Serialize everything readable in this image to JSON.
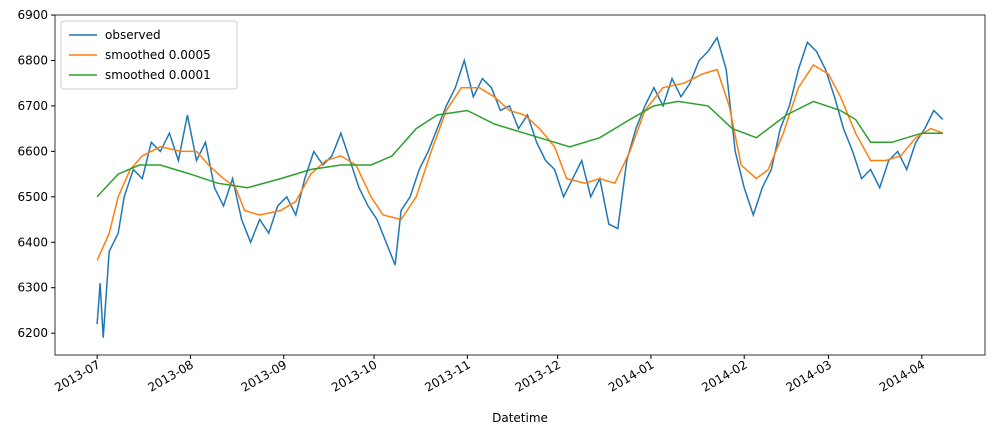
{
  "chart_data": {
    "type": "line",
    "xlabel": "Datetime",
    "legend": "upper left",
    "xlim": [
      "2013-06-17",
      "2014-04-22"
    ],
    "ylim": [
      6152,
      6900
    ],
    "yticks": [
      6200,
      6300,
      6400,
      6500,
      6600,
      6700,
      6800,
      6900
    ],
    "xticks": [
      {
        "value": "2013-07-01",
        "label": "2013-07"
      },
      {
        "value": "2013-08-01",
        "label": "2013-08"
      },
      {
        "value": "2013-09-01",
        "label": "2013-09"
      },
      {
        "value": "2013-10-01",
        "label": "2013-10"
      },
      {
        "value": "2013-11-01",
        "label": "2013-11"
      },
      {
        "value": "2013-12-01",
        "label": "2013-12"
      },
      {
        "value": "2014-01-01",
        "label": "2014-01"
      },
      {
        "value": "2014-02-01",
        "label": "2014-02"
      },
      {
        "value": "2014-03-01",
        "label": "2014-03"
      },
      {
        "value": "2014-04-01",
        "label": "2014-04"
      }
    ],
    "series": [
      {
        "name": "observed",
        "color": "#1f77b4",
        "x": [
          "2013-07-01",
          "2013-07-02",
          "2013-07-03",
          "2013-07-05",
          "2013-07-08",
          "2013-07-10",
          "2013-07-13",
          "2013-07-16",
          "2013-07-19",
          "2013-07-22",
          "2013-07-25",
          "2013-07-28",
          "2013-07-31",
          "2013-08-03",
          "2013-08-06",
          "2013-08-09",
          "2013-08-12",
          "2013-08-15",
          "2013-08-18",
          "2013-08-21",
          "2013-08-24",
          "2013-08-27",
          "2013-08-30",
          "2013-09-02",
          "2013-09-05",
          "2013-09-08",
          "2013-09-11",
          "2013-09-14",
          "2013-09-17",
          "2013-09-20",
          "2013-09-23",
          "2013-09-26",
          "2013-09-29",
          "2013-10-02",
          "2013-10-05",
          "2013-10-08",
          "2013-10-10",
          "2013-10-13",
          "2013-10-16",
          "2013-10-19",
          "2013-10-22",
          "2013-10-25",
          "2013-10-28",
          "2013-10-31",
          "2013-11-03",
          "2013-11-06",
          "2013-11-09",
          "2013-11-12",
          "2013-11-15",
          "2013-11-18",
          "2013-11-21",
          "2013-11-24",
          "2013-11-27",
          "2013-11-30",
          "2013-12-03",
          "2013-12-06",
          "2013-12-09",
          "2013-12-12",
          "2013-12-15",
          "2013-12-18",
          "2013-12-21",
          "2013-12-24",
          "2013-12-27",
          "2013-12-30",
          "2014-01-02",
          "2014-01-05",
          "2014-01-08",
          "2014-01-11",
          "2014-01-14",
          "2014-01-17",
          "2014-01-20",
          "2014-01-23",
          "2014-01-26",
          "2014-01-29",
          "2014-02-01",
          "2014-02-04",
          "2014-02-07",
          "2014-02-10",
          "2014-02-13",
          "2014-02-16",
          "2014-02-19",
          "2014-02-22",
          "2014-02-25",
          "2014-02-28",
          "2014-03-03",
          "2014-03-06",
          "2014-03-09",
          "2014-03-12",
          "2014-03-15",
          "2014-03-18",
          "2014-03-21",
          "2014-03-24",
          "2014-03-27",
          "2014-03-30",
          "2014-04-02",
          "2014-04-05",
          "2014-04-08"
        ],
        "values": [
          6220,
          6310,
          6190,
          6380,
          6420,
          6500,
          6560,
          6540,
          6620,
          6600,
          6640,
          6580,
          6680,
          6580,
          6620,
          6520,
          6480,
          6540,
          6450,
          6400,
          6450,
          6420,
          6480,
          6500,
          6460,
          6540,
          6600,
          6570,
          6590,
          6640,
          6580,
          6520,
          6480,
          6450,
          6400,
          6350,
          6470,
          6500,
          6560,
          6600,
          6650,
          6700,
          6740,
          6800,
          6720,
          6760,
          6740,
          6690,
          6700,
          6650,
          6680,
          6620,
          6580,
          6560,
          6500,
          6540,
          6580,
          6500,
          6540,
          6440,
          6430,
          6580,
          6650,
          6700,
          6740,
          6700,
          6760,
          6720,
          6750,
          6800,
          6820,
          6850,
          6780,
          6600,
          6520,
          6460,
          6520,
          6560,
          6650,
          6700,
          6780,
          6840,
          6820,
          6780,
          6720,
          6650,
          6600,
          6540,
          6560,
          6520,
          6580,
          6600,
          6560,
          6620,
          6650,
          6690,
          6670
        ]
      },
      {
        "name": "smoothed 0.0005",
        "color": "#ff7f0e",
        "x": [
          "2013-07-01",
          "2013-07-05",
          "2013-07-08",
          "2013-07-12",
          "2013-07-16",
          "2013-07-22",
          "2013-07-29",
          "2013-08-03",
          "2013-08-07",
          "2013-08-12",
          "2013-08-16",
          "2013-08-19",
          "2013-08-24",
          "2013-08-31",
          "2013-09-05",
          "2013-09-10",
          "2013-09-15",
          "2013-09-20",
          "2013-09-25",
          "2013-09-30",
          "2013-10-04",
          "2013-10-10",
          "2013-10-15",
          "2013-10-20",
          "2013-10-25",
          "2013-10-30",
          "2013-11-05",
          "2013-11-10",
          "2013-11-15",
          "2013-11-20",
          "2013-11-25",
          "2013-11-30",
          "2013-12-04",
          "2013-12-10",
          "2013-12-15",
          "2013-12-20",
          "2013-12-25",
          "2013-12-30",
          "2014-01-05",
          "2014-01-12",
          "2014-01-18",
          "2014-01-23",
          "2014-01-27",
          "2014-01-31",
          "2014-02-05",
          "2014-02-09",
          "2014-02-14",
          "2014-02-19",
          "2014-02-24",
          "2014-03-01",
          "2014-03-05",
          "2014-03-10",
          "2014-03-15",
          "2014-03-20",
          "2014-03-25",
          "2014-03-30",
          "2014-04-04",
          "2014-04-08"
        ],
        "values": [
          6360,
          6420,
          6500,
          6560,
          6590,
          6610,
          6600,
          6600,
          6570,
          6540,
          6520,
          6470,
          6460,
          6470,
          6490,
          6550,
          6580,
          6590,
          6570,
          6500,
          6460,
          6450,
          6500,
          6600,
          6690,
          6740,
          6740,
          6720,
          6690,
          6680,
          6650,
          6610,
          6540,
          6530,
          6540,
          6530,
          6600,
          6690,
          6740,
          6750,
          6770,
          6780,
          6700,
          6570,
          6540,
          6560,
          6640,
          6740,
          6790,
          6770,
          6720,
          6640,
          6580,
          6580,
          6590,
          6630,
          6650,
          6640
        ]
      },
      {
        "name": "smoothed 0.0001",
        "color": "#2ca02c",
        "x": [
          "2013-07-01",
          "2013-07-08",
          "2013-07-15",
          "2013-07-22",
          "2013-08-01",
          "2013-08-10",
          "2013-08-20",
          "2013-08-31",
          "2013-09-10",
          "2013-09-20",
          "2013-09-30",
          "2013-10-07",
          "2013-10-15",
          "2013-10-22",
          "2013-11-01",
          "2013-11-10",
          "2013-11-20",
          "2013-11-30",
          "2013-12-05",
          "2013-12-15",
          "2013-12-25",
          "2014-01-02",
          "2014-01-10",
          "2014-01-20",
          "2014-01-28",
          "2014-02-05",
          "2014-02-15",
          "2014-02-24",
          "2014-03-05",
          "2014-03-10",
          "2014-03-15",
          "2014-03-22",
          "2014-04-01",
          "2014-04-08"
        ],
        "values": [
          6500,
          6550,
          6570,
          6570,
          6550,
          6530,
          6520,
          6540,
          6560,
          6570,
          6570,
          6590,
          6650,
          6680,
          6690,
          6660,
          6640,
          6620,
          6610,
          6630,
          6670,
          6700,
          6710,
          6700,
          6650,
          6630,
          6680,
          6710,
          6690,
          6670,
          6620,
          6620,
          6640,
          6640
        ]
      }
    ]
  }
}
